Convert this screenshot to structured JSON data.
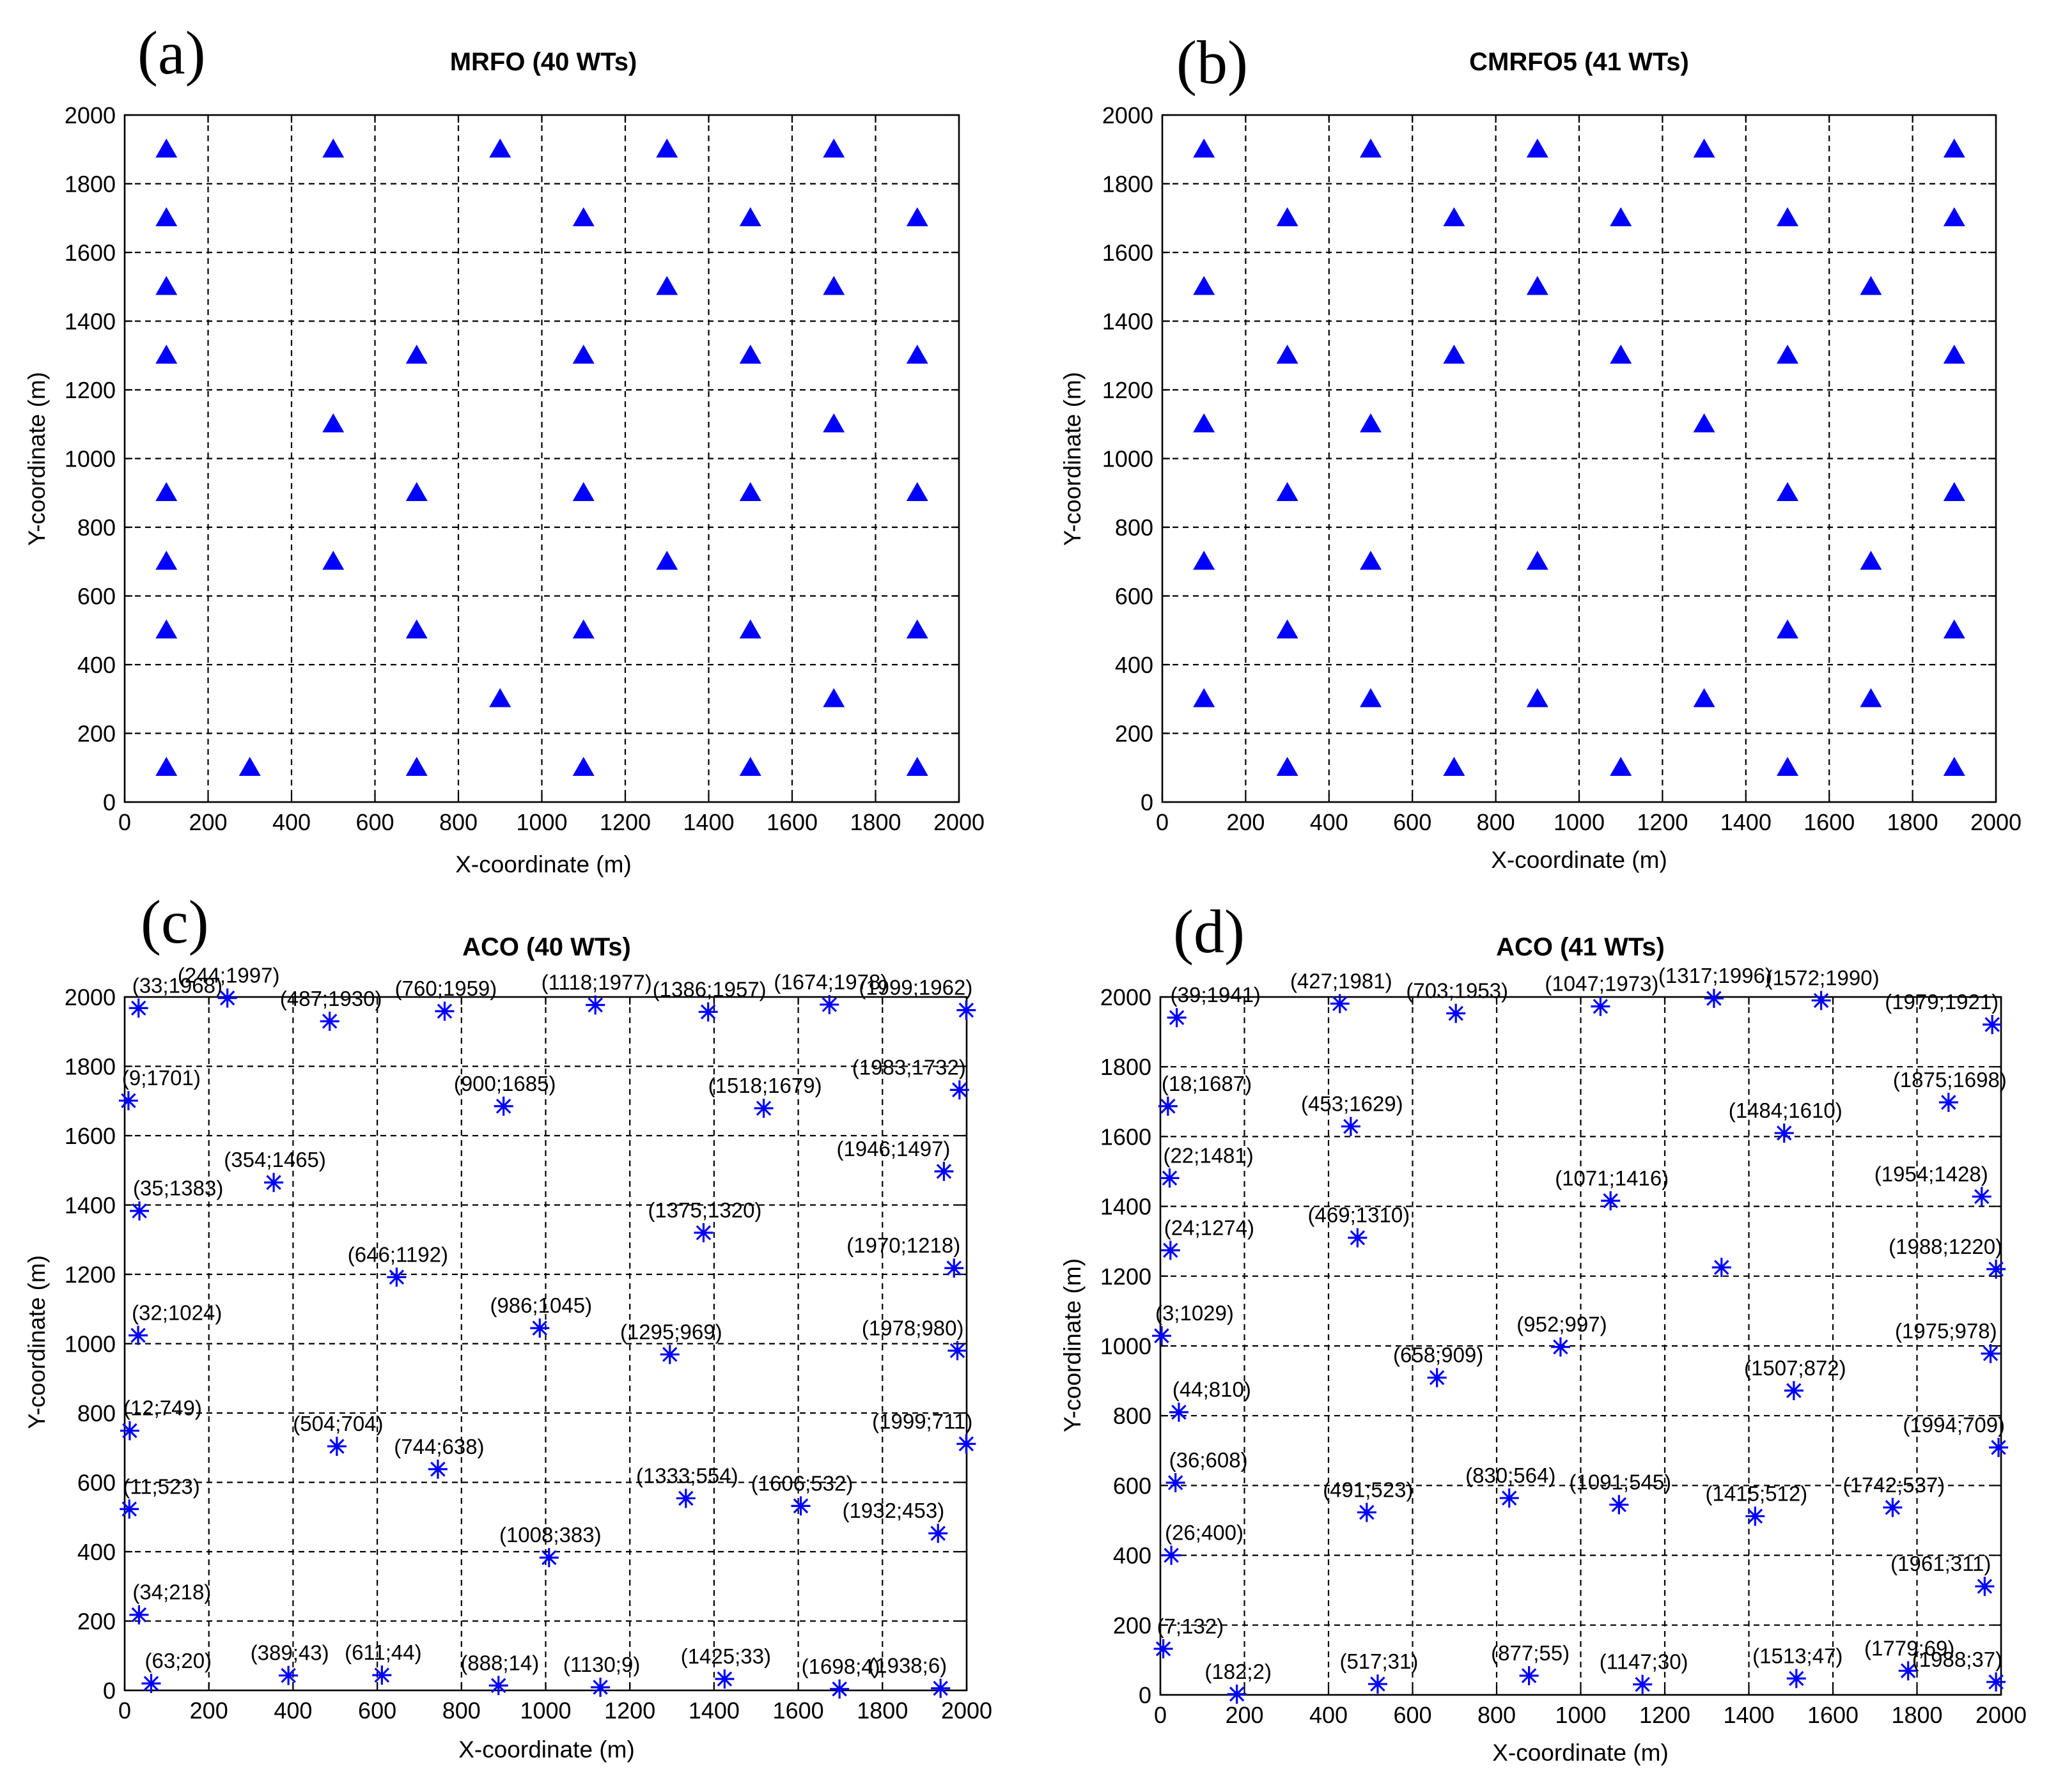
{
  "chart_data": [
    {
      "panel": "(a)",
      "type": "scatter",
      "title": "MRFO (40 WTs)",
      "xlabel": "X-coordinate (m)",
      "ylabel": "Y-coordinate (m)",
      "xlim": [
        0,
        2000
      ],
      "ylim": [
        0,
        2000
      ],
      "xticks": [
        "0",
        "200",
        "400",
        "600",
        "800",
        "1000",
        "1200",
        "1400",
        "1600",
        "1800",
        "2000"
      ],
      "yticks": [
        "0",
        "200",
        "400",
        "600",
        "800",
        "1000",
        "1200",
        "1400",
        "1600",
        "1800",
        "2000"
      ],
      "grid": true,
      "marker": "triangle",
      "color": "#0000ff",
      "points": [
        [
          100,
          1900
        ],
        [
          500,
          1900
        ],
        [
          900,
          1900
        ],
        [
          1300,
          1900
        ],
        [
          1700,
          1900
        ],
        [
          100,
          1700
        ],
        [
          1100,
          1700
        ],
        [
          1500,
          1700
        ],
        [
          1900,
          1700
        ],
        [
          100,
          1500
        ],
        [
          1300,
          1500
        ],
        [
          1700,
          1500
        ],
        [
          100,
          1300
        ],
        [
          700,
          1300
        ],
        [
          1100,
          1300
        ],
        [
          1500,
          1300
        ],
        [
          1900,
          1300
        ],
        [
          500,
          1100
        ],
        [
          1700,
          1100
        ],
        [
          100,
          900
        ],
        [
          700,
          900
        ],
        [
          1100,
          900
        ],
        [
          1500,
          900
        ],
        [
          1900,
          900
        ],
        [
          100,
          700
        ],
        [
          500,
          700
        ],
        [
          1300,
          700
        ],
        [
          100,
          500
        ],
        [
          700,
          500
        ],
        [
          1100,
          500
        ],
        [
          1500,
          500
        ],
        [
          1900,
          500
        ],
        [
          900,
          300
        ],
        [
          1700,
          300
        ],
        [
          100,
          100
        ],
        [
          300,
          100
        ],
        [
          700,
          100
        ],
        [
          1100,
          100
        ],
        [
          1500,
          100
        ],
        [
          1900,
          100
        ]
      ]
    },
    {
      "panel": "(b)",
      "type": "scatter",
      "title": "CMRFO5 (41 WTs)",
      "xlabel": "X-coordinate (m)",
      "ylabel": "Y-coordinate (m)",
      "xlim": [
        0,
        2000
      ],
      "ylim": [
        0,
        2000
      ],
      "xticks": [
        "0",
        "200",
        "400",
        "600",
        "800",
        "1000",
        "1200",
        "1400",
        "1600",
        "1800",
        "2000"
      ],
      "yticks": [
        "0",
        "200",
        "400",
        "600",
        "800",
        "1000",
        "1200",
        "1400",
        "1600",
        "1800",
        "2000"
      ],
      "grid": true,
      "marker": "triangle",
      "color": "#0000ff",
      "points": [
        [
          100,
          1900
        ],
        [
          500,
          1900
        ],
        [
          900,
          1900
        ],
        [
          1300,
          1900
        ],
        [
          1900,
          1900
        ],
        [
          300,
          1700
        ],
        [
          700,
          1700
        ],
        [
          1100,
          1700
        ],
        [
          1500,
          1700
        ],
        [
          1900,
          1700
        ],
        [
          100,
          1500
        ],
        [
          900,
          1500
        ],
        [
          1700,
          1500
        ],
        [
          300,
          1300
        ],
        [
          700,
          1300
        ],
        [
          1100,
          1300
        ],
        [
          1500,
          1300
        ],
        [
          1900,
          1300
        ],
        [
          100,
          1100
        ],
        [
          500,
          1100
        ],
        [
          1300,
          1100
        ],
        [
          300,
          900
        ],
        [
          1500,
          900
        ],
        [
          1900,
          900
        ],
        [
          100,
          700
        ],
        [
          500,
          700
        ],
        [
          900,
          700
        ],
        [
          1700,
          700
        ],
        [
          300,
          500
        ],
        [
          1500,
          500
        ],
        [
          1900,
          500
        ],
        [
          100,
          300
        ],
        [
          500,
          300
        ],
        [
          900,
          300
        ],
        [
          1300,
          300
        ],
        [
          1700,
          300
        ],
        [
          300,
          100
        ],
        [
          700,
          100
        ],
        [
          1100,
          100
        ],
        [
          1500,
          100
        ],
        [
          1900,
          100
        ]
      ]
    },
    {
      "panel": "(c)",
      "type": "scatter",
      "title": "ACO (40 WTs)",
      "xlabel": "X-coordinate (m)",
      "ylabel": "Y-coordinate (m)",
      "xlim": [
        0,
        2000
      ],
      "ylim": [
        0,
        2000
      ],
      "xticks": [
        "0",
        "200",
        "400",
        "600",
        "800",
        "1000",
        "1200",
        "1400",
        "1600",
        "1800",
        "2000"
      ],
      "yticks": [
        "0",
        "200",
        "400",
        "600",
        "800",
        "1000",
        "1200",
        "1400",
        "1600",
        "1800",
        "2000"
      ],
      "grid": true,
      "marker": "asterisk",
      "color": "#0000ff",
      "points": [
        {
          "x": 33,
          "y": 1968,
          "label": "(33;1968)"
        },
        {
          "x": 244,
          "y": 1997,
          "label": "(244;1997)"
        },
        {
          "x": 487,
          "y": 1930,
          "label": "(487;1930)"
        },
        {
          "x": 760,
          "y": 1959,
          "label": "(760;1959)"
        },
        {
          "x": 1118,
          "y": 1977,
          "label": "(1118;1977)"
        },
        {
          "x": 1386,
          "y": 1957,
          "label": "(1386;1957)"
        },
        {
          "x": 1674,
          "y": 1978,
          "label": "(1674;1978)"
        },
        {
          "x": 1999,
          "y": 1962,
          "label": "(1999;1962)"
        },
        {
          "x": 9,
          "y": 1701,
          "label": "(9;1701)"
        },
        {
          "x": 900,
          "y": 1685,
          "label": "(900;1685)"
        },
        {
          "x": 1518,
          "y": 1679,
          "label": "(1518;1679)"
        },
        {
          "x": 1983,
          "y": 1732,
          "label": "(1983;1732)"
        },
        {
          "x": 35,
          "y": 1383,
          "label": "(35;1383)"
        },
        {
          "x": 354,
          "y": 1465,
          "label": "(354;1465)"
        },
        {
          "x": 1946,
          "y": 1497,
          "label": "(1946;1497)"
        },
        {
          "x": 1375,
          "y": 1320,
          "label": "(1375;1320)"
        },
        {
          "x": 646,
          "y": 1192,
          "label": "(646;1192)"
        },
        {
          "x": 1970,
          "y": 1218,
          "label": "(1970;1218)"
        },
        {
          "x": 32,
          "y": 1024,
          "label": "(32;1024)"
        },
        {
          "x": 986,
          "y": 1045,
          "label": "(986;1045)"
        },
        {
          "x": 1295,
          "y": 969,
          "label": "(1295;969)"
        },
        {
          "x": 1978,
          "y": 980,
          "label": "(1978;980)"
        },
        {
          "x": 12,
          "y": 749,
          "label": "(12;749)"
        },
        {
          "x": 504,
          "y": 704,
          "label": "(504;704)"
        },
        {
          "x": 744,
          "y": 638,
          "label": "(744;638)"
        },
        {
          "x": 1999,
          "y": 711,
          "label": "(1999;711)"
        },
        {
          "x": 11,
          "y": 523,
          "label": "(11;523)"
        },
        {
          "x": 1333,
          "y": 554,
          "label": "(1333;554)"
        },
        {
          "x": 1606,
          "y": 532,
          "label": "(1606;532)"
        },
        {
          "x": 1932,
          "y": 453,
          "label": "(1932;453)"
        },
        {
          "x": 1008,
          "y": 383,
          "label": "(1008;383)"
        },
        {
          "x": 34,
          "y": 218,
          "label": "(34;218)"
        },
        {
          "x": 63,
          "y": 20,
          "label": "(63;20)"
        },
        {
          "x": 389,
          "y": 43,
          "label": "(389;43)"
        },
        {
          "x": 611,
          "y": 44,
          "label": "(611;44)"
        },
        {
          "x": 888,
          "y": 14,
          "label": "(888;14)"
        },
        {
          "x": 1130,
          "y": 9,
          "label": "(1130;9)"
        },
        {
          "x": 1425,
          "y": 33,
          "label": "(1425;33)"
        },
        {
          "x": 1698,
          "y": 4,
          "label": "(1698;4)"
        },
        {
          "x": 1938,
          "y": 6,
          "label": "(1938;6)"
        }
      ]
    },
    {
      "panel": "(d)",
      "type": "scatter",
      "title": "ACO (41 WTs)",
      "xlabel": "X-coordinate (m)",
      "ylabel": "Y-coordinate (m)",
      "xlim": [
        0,
        2000
      ],
      "ylim": [
        0,
        2000
      ],
      "xticks": [
        "0",
        "200",
        "400",
        "600",
        "800",
        "1000",
        "1200",
        "1400",
        "1600",
        "1800",
        "2000"
      ],
      "yticks": [
        "0",
        "200",
        "400",
        "600",
        "800",
        "1000",
        "1200",
        "1400",
        "1600",
        "1800",
        "2000"
      ],
      "grid": true,
      "marker": "asterisk",
      "color": "#0000ff",
      "points": [
        {
          "x": 39,
          "y": 1941,
          "label": "(39;1941)"
        },
        {
          "x": 427,
          "y": 1981,
          "label": "(427;1981)"
        },
        {
          "x": 703,
          "y": 1953,
          "label": "(703;1953)"
        },
        {
          "x": 1047,
          "y": 1973,
          "label": "(1047;1973)"
        },
        {
          "x": 1317,
          "y": 1996,
          "label": "(1317;1996)"
        },
        {
          "x": 1572,
          "y": 1990,
          "label": "(1572;1990)"
        },
        {
          "x": 1979,
          "y": 1921,
          "label": "(1979;1921)"
        },
        {
          "x": 18,
          "y": 1687,
          "label": "(18;1687)"
        },
        {
          "x": 453,
          "y": 1629,
          "label": "(453;1629)"
        },
        {
          "x": 1484,
          "y": 1610,
          "label": "(1484;1610)"
        },
        {
          "x": 1875,
          "y": 1698,
          "label": "(1875;1698)"
        },
        {
          "x": 22,
          "y": 1481,
          "label": "(22;1481)"
        },
        {
          "x": 1071,
          "y": 1416,
          "label": "(1071;1416)"
        },
        {
          "x": 1954,
          "y": 1428,
          "label": "(1954;1428)"
        },
        {
          "x": 469,
          "y": 1310,
          "label": "(469;1310)"
        },
        {
          "x": 24,
          "y": 1274,
          "label": "(24;1274)"
        },
        {
          "x": 1988,
          "y": 1220,
          "label": "(1988;1220)"
        },
        {
          "x": 1335,
          "y": 1225,
          "label": ""
        },
        {
          "x": 3,
          "y": 1029,
          "label": "(3;1029)"
        },
        {
          "x": 952,
          "y": 997,
          "label": "(952;997)"
        },
        {
          "x": 658,
          "y": 909,
          "label": "(658;909)"
        },
        {
          "x": 1975,
          "y": 978,
          "label": "(1975;978)"
        },
        {
          "x": 1507,
          "y": 872,
          "label": "(1507;872)"
        },
        {
          "x": 44,
          "y": 810,
          "label": "(44;810)"
        },
        {
          "x": 1994,
          "y": 709,
          "label": "(1994;709)"
        },
        {
          "x": 36,
          "y": 608,
          "label": "(36;608)"
        },
        {
          "x": 491,
          "y": 523,
          "label": "(491;523)"
        },
        {
          "x": 830,
          "y": 564,
          "label": "(830;564)"
        },
        {
          "x": 1091,
          "y": 545,
          "label": "(1091;545)"
        },
        {
          "x": 1415,
          "y": 512,
          "label": "(1415;512)"
        },
        {
          "x": 1742,
          "y": 537,
          "label": "(1742;537)"
        },
        {
          "x": 26,
          "y": 400,
          "label": "(26;400)"
        },
        {
          "x": 1961,
          "y": 311,
          "label": "(1961;311)"
        },
        {
          "x": 7,
          "y": 132,
          "label": "(7;132)"
        },
        {
          "x": 182,
          "y": 2,
          "label": "(182;2)"
        },
        {
          "x": 517,
          "y": 31,
          "label": "(517;31)"
        },
        {
          "x": 877,
          "y": 55,
          "label": "(877;55)"
        },
        {
          "x": 1147,
          "y": 30,
          "label": "(1147;30)"
        },
        {
          "x": 1513,
          "y": 47,
          "label": "(1513;47)"
        },
        {
          "x": 1779,
          "y": 69,
          "label": "(1779;69)"
        },
        {
          "x": 1988,
          "y": 37,
          "label": "(1988;37)"
        }
      ]
    }
  ]
}
